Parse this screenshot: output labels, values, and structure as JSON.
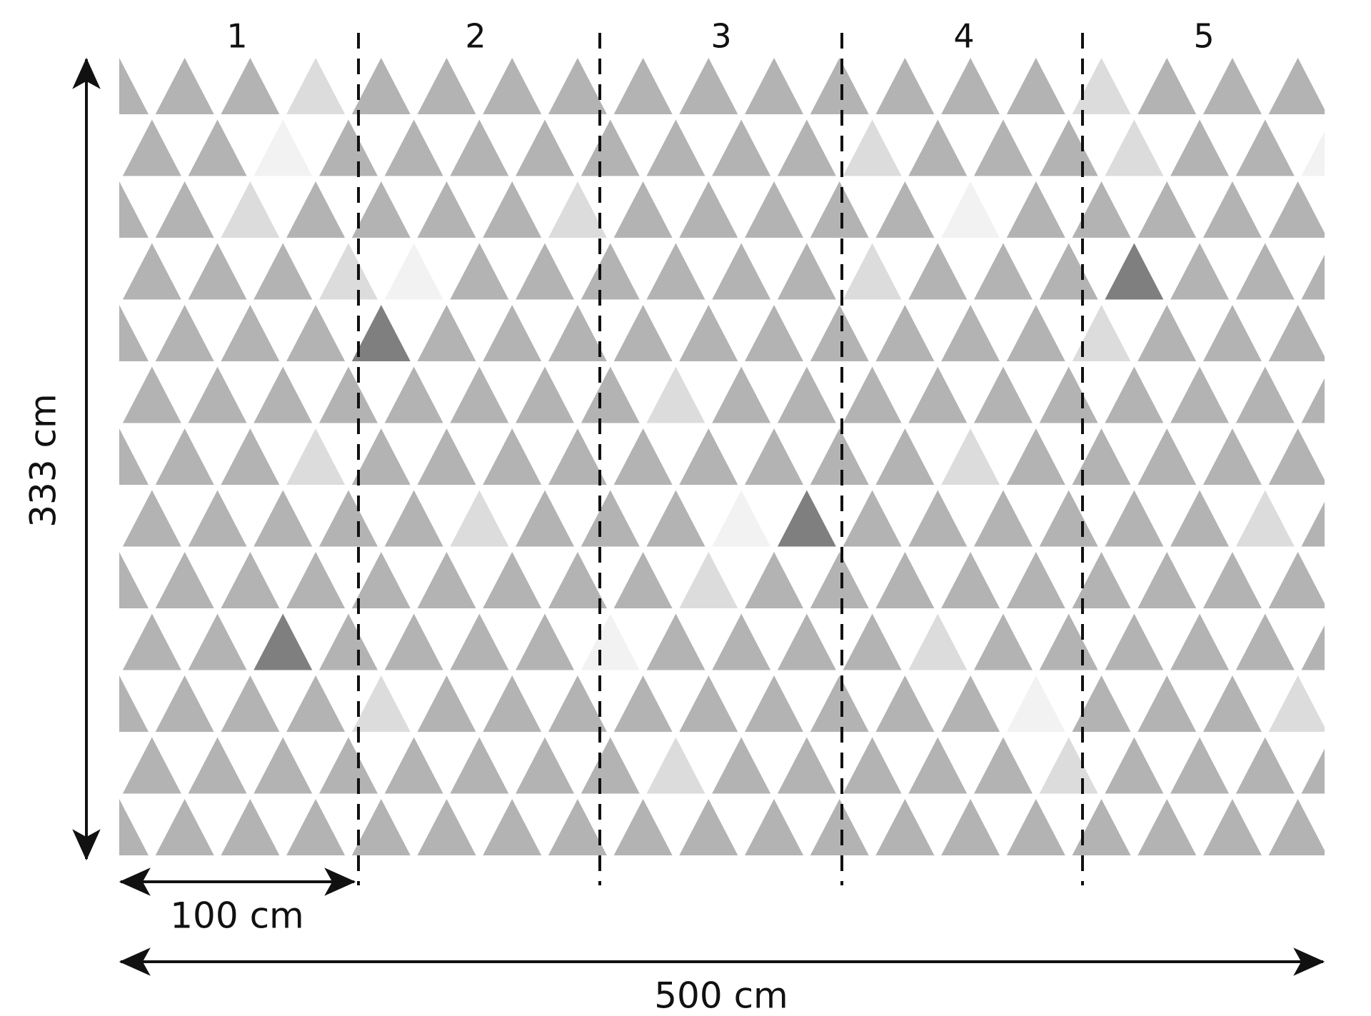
{
  "panels": [
    "1",
    "2",
    "3",
    "4",
    "5"
  ],
  "dimensions": {
    "height": "333 cm",
    "panel_width": "100 cm",
    "total_width": "500 cm"
  }
}
